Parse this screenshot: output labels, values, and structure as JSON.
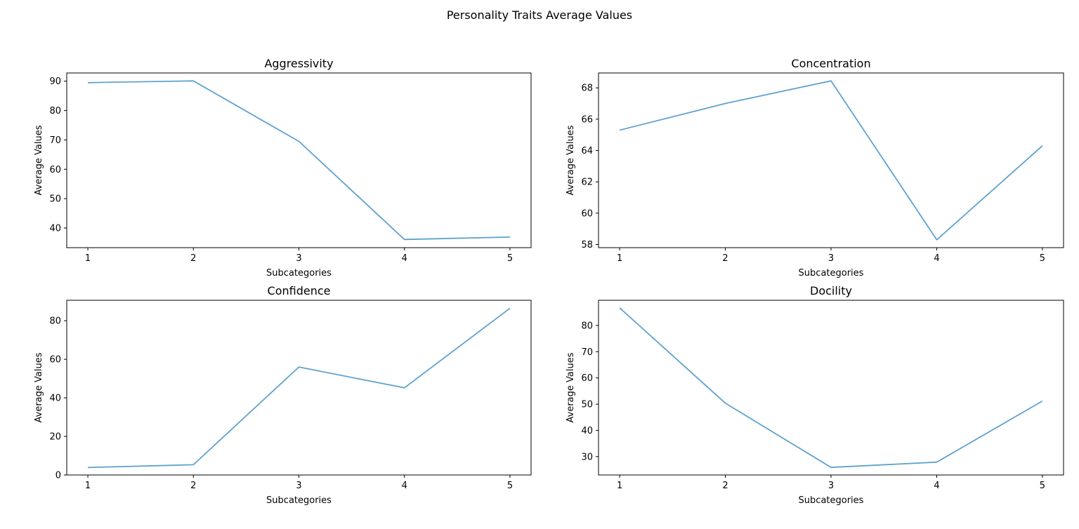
{
  "figure": {
    "title": "Personality Traits Average Values"
  },
  "style": {
    "line_color": "#5fa2ce",
    "axes_color": "#000000",
    "background": "#ffffff"
  },
  "chart_data": [
    {
      "type": "line",
      "title": "Aggressivity",
      "xlabel": "Subcategories",
      "ylabel": "Average Values",
      "x": [
        1,
        2,
        3,
        4,
        5
      ],
      "values": [
        89.5,
        90.1,
        69.5,
        36.1,
        36.9
      ],
      "xlim": [
        0.8,
        5.2
      ],
      "ylim": [
        33.3,
        92.8
      ],
      "xticks": [
        1,
        2,
        3,
        4,
        5
      ],
      "yticks": [
        40,
        50,
        60,
        70,
        80,
        90
      ],
      "grid": false
    },
    {
      "type": "line",
      "title": "Concentration",
      "xlabel": "Subcategories",
      "ylabel": "Average Values",
      "x": [
        1,
        2,
        3,
        4,
        5
      ],
      "values": [
        65.3,
        67.0,
        68.45,
        58.3,
        64.3
      ],
      "xlim": [
        0.8,
        5.2
      ],
      "ylim": [
        57.8,
        68.95
      ],
      "xticks": [
        1,
        2,
        3,
        4,
        5
      ],
      "yticks": [
        58,
        60,
        62,
        64,
        66,
        68
      ],
      "grid": false
    },
    {
      "type": "line",
      "title": "Confidence",
      "xlabel": "Subcategories",
      "ylabel": "Average Values",
      "x": [
        1,
        2,
        3,
        4,
        5
      ],
      "values": [
        3.9,
        5.3,
        56.0,
        45.2,
        86.5
      ],
      "xlim": [
        0.8,
        5.2
      ],
      "ylim": [
        0.0,
        90.6
      ],
      "xticks": [
        1,
        2,
        3,
        4,
        5
      ],
      "yticks": [
        0,
        20,
        40,
        60,
        80
      ],
      "grid": false
    },
    {
      "type": "line",
      "title": "Docility",
      "xlabel": "Subcategories",
      "ylabel": "Average Values",
      "x": [
        1,
        2,
        3,
        4,
        5
      ],
      "values": [
        86.7,
        50.4,
        25.9,
        27.9,
        51.2
      ],
      "xlim": [
        0.8,
        5.2
      ],
      "ylim": [
        23.0,
        89.6
      ],
      "xticks": [
        1,
        2,
        3,
        4,
        5
      ],
      "yticks": [
        30,
        40,
        50,
        60,
        70,
        80
      ],
      "grid": false
    }
  ]
}
